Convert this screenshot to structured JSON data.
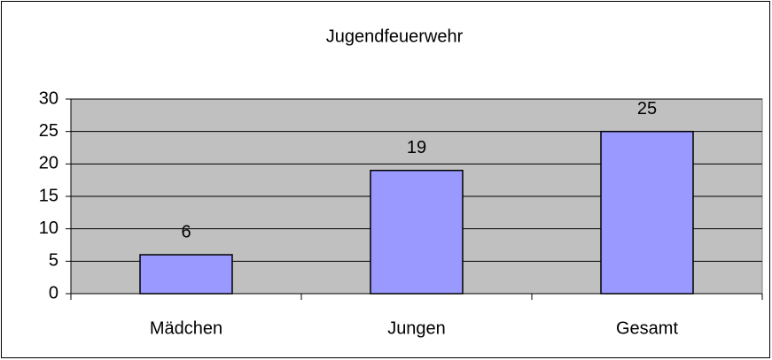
{
  "chart_data": {
    "type": "bar",
    "title": "Jugendfeuerwehr",
    "categories": [
      "Mädchen",
      "Jungen",
      "Gesamt"
    ],
    "values": [
      6,
      19,
      25
    ],
    "color": "#9999ff",
    "ylim": [
      0,
      30
    ],
    "yticks": [
      0,
      5,
      10,
      15,
      20,
      25,
      30
    ],
    "grid": true
  }
}
